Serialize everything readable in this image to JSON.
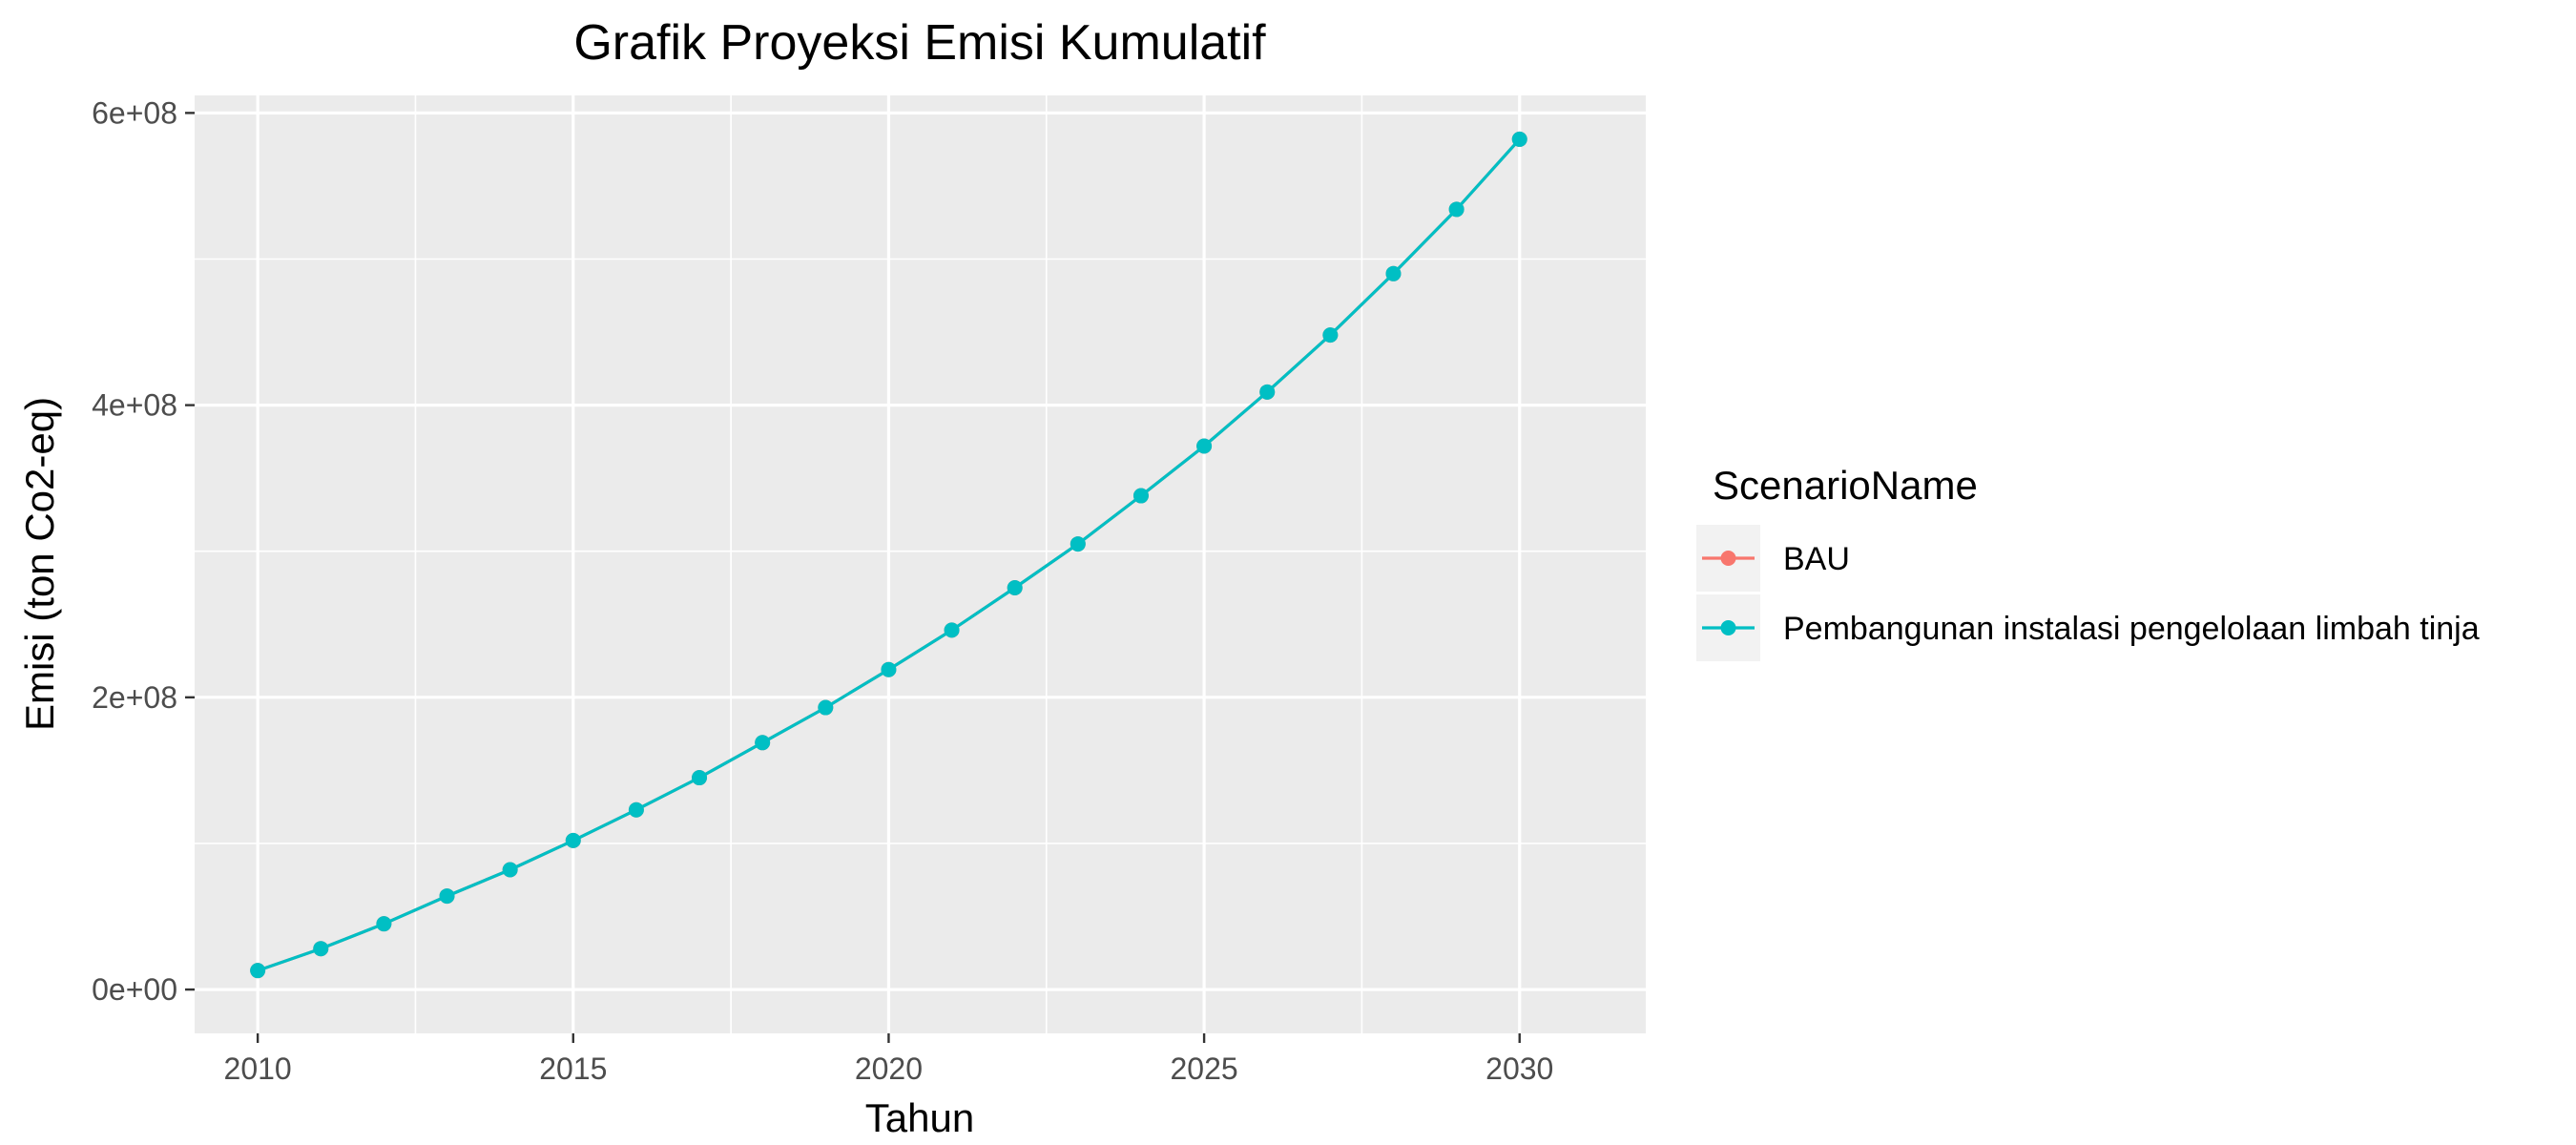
{
  "chart_data": {
    "type": "line",
    "title": "Grafik Proyeksi Emisi Kumulatif",
    "xlabel": "Tahun",
    "ylabel": "Emisi (ton Co2-eq)",
    "x": [
      2010,
      2011,
      2012,
      2013,
      2014,
      2015,
      2016,
      2017,
      2018,
      2019,
      2020,
      2021,
      2022,
      2023,
      2024,
      2025,
      2026,
      2027,
      2028,
      2029,
      2030
    ],
    "xlim": [
      2009,
      2032
    ],
    "ylim": [
      -30000000,
      612000000
    ],
    "x_ticks": [
      2010,
      2015,
      2020,
      2025,
      2030
    ],
    "x_tick_labels": [
      "2010",
      "2015",
      "2020",
      "2025",
      "2030"
    ],
    "y_ticks": [
      0,
      200000000,
      400000000,
      600000000
    ],
    "y_tick_labels": [
      "0e+00",
      "2e+08",
      "4e+08",
      "6e+08"
    ],
    "grid": true,
    "legend_title": "ScenarioName",
    "legend_position": "right",
    "series": [
      {
        "name": "BAU",
        "color": "#F8766D",
        "values": [
          13000000,
          28000000,
          45000000,
          64000000,
          82000000,
          102000000,
          123000000,
          145000000,
          169000000,
          193000000,
          219000000,
          246000000,
          275000000,
          305000000,
          338000000,
          372000000,
          409000000,
          448000000,
          490000000,
          534000000,
          582000000
        ]
      },
      {
        "name": "Pembangunan instalasi pengelolaan limbah tinja",
        "color": "#00BFC4",
        "values": [
          13000000,
          28000000,
          45000000,
          64000000,
          82000000,
          102000000,
          123000000,
          145000000,
          169000000,
          193000000,
          219000000,
          246000000,
          275000000,
          305000000,
          338000000,
          372000000,
          409000000,
          448000000,
          490000000,
          534000000,
          582000000
        ]
      }
    ]
  }
}
